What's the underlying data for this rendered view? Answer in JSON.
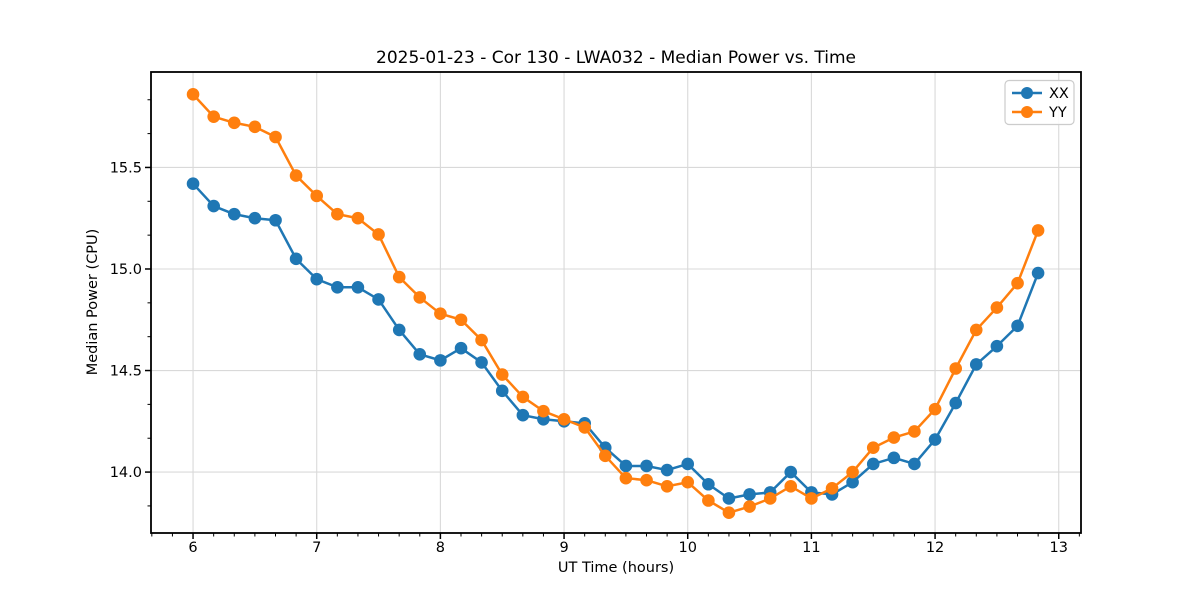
{
  "chart_data": {
    "type": "line",
    "title": "2025-01-23 - Cor 130 - LWA032 - Median Power vs. Time",
    "xlabel": "UT Time (hours)",
    "ylabel": "Median Power (CPU)",
    "xlim": [
      5.66,
      13.18
    ],
    "ylim": [
      13.7,
      15.97
    ],
    "x_major_ticks": [
      6,
      7,
      8,
      9,
      10,
      11,
      12,
      13
    ],
    "y_major_ticks": [
      14.0,
      14.5,
      15.0,
      15.5
    ],
    "x_minor_step": 0.1666667,
    "y_minor_step": 0.1666667,
    "grid": true,
    "background": "#ffffff",
    "grid_color": "#d9d9d9",
    "spine_color": "#000000",
    "legend": {
      "position": "upper right",
      "entries": [
        "XX",
        "YY"
      ]
    },
    "x": [
      6,
      6.167,
      6.333,
      6.5,
      6.667,
      6.833,
      7,
      7.167,
      7.333,
      7.5,
      7.667,
      7.833,
      8,
      8.167,
      8.333,
      8.5,
      8.667,
      8.833,
      9,
      9.167,
      9.333,
      9.5,
      9.667,
      9.833,
      10,
      10.167,
      10.333,
      10.5,
      10.667,
      10.833,
      11,
      11.167,
      11.333,
      11.5,
      11.667,
      11.833,
      12,
      12.167,
      12.333,
      12.5,
      12.667,
      12.833
    ],
    "series": [
      {
        "name": "XX",
        "color": "#1f77b4",
        "values": [
          15.42,
          15.31,
          15.27,
          15.25,
          15.24,
          15.05,
          14.95,
          14.91,
          14.91,
          14.85,
          14.7,
          14.58,
          14.55,
          14.61,
          14.54,
          14.4,
          14.28,
          14.26,
          14.25,
          14.24,
          14.12,
          14.03,
          14.03,
          14.01,
          14.04,
          13.94,
          13.87,
          13.89,
          13.9,
          14.0,
          13.9,
          13.89,
          13.95,
          14.04,
          14.07,
          14.04,
          14.16,
          14.34,
          14.53,
          14.62,
          14.72,
          14.98
        ]
      },
      {
        "name": "YY",
        "color": "#ff7f0e",
        "values": [
          15.86,
          15.75,
          15.72,
          15.7,
          15.65,
          15.46,
          15.36,
          15.27,
          15.25,
          15.17,
          14.96,
          14.86,
          14.78,
          14.75,
          14.65,
          14.48,
          14.37,
          14.3,
          14.26,
          14.22,
          14.08,
          13.97,
          13.96,
          13.93,
          13.95,
          13.86,
          13.8,
          13.83,
          13.87,
          13.93,
          13.87,
          13.92,
          14.0,
          14.12,
          14.17,
          14.2,
          14.31,
          14.51,
          14.7,
          14.81,
          14.93,
          15.19
        ]
      }
    ]
  }
}
